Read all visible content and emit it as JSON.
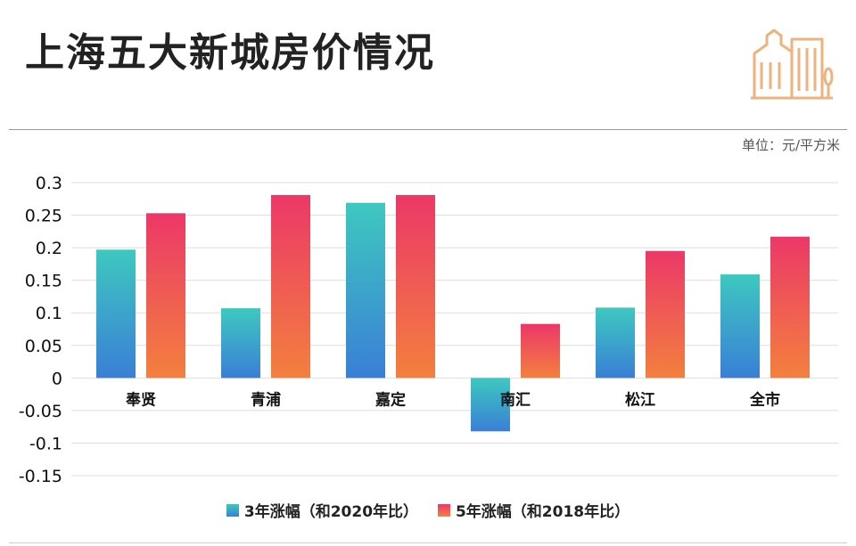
{
  "title": "上海五大新城房价情况",
  "unit_label": "单位：元/平方米",
  "logo_icon": "buildings-icon",
  "colors": {
    "series1_top": "#3ec8c0",
    "series1_bottom": "#3a7fd6",
    "series2_top": "#ec3868",
    "series2_bottom": "#f3803e",
    "grid": "#dddddd",
    "logo": "#eeb27c"
  },
  "chart_data": {
    "type": "bar",
    "title": "上海五大新城房价情况",
    "categories": [
      "奉贤",
      "青浦",
      "嘉定",
      "南汇",
      "松江",
      "全市"
    ],
    "series": [
      {
        "name": "3年涨幅（和2020年比）",
        "values": [
          0.197,
          0.107,
          0.269,
          -0.082,
          0.108,
          0.159
        ]
      },
      {
        "name": "5年涨幅（和2018年比）",
        "values": [
          0.253,
          0.281,
          0.281,
          0.083,
          0.195,
          0.217
        ]
      }
    ],
    "ylim": [
      -0.15,
      0.3
    ],
    "yticks": [
      "0.3",
      "0.25",
      "0.2",
      "0.15",
      "0.1",
      "0.05",
      "0",
      "-0.05",
      "-0.1",
      "-0.15"
    ],
    "grid": true,
    "legend_position": "bottom"
  }
}
